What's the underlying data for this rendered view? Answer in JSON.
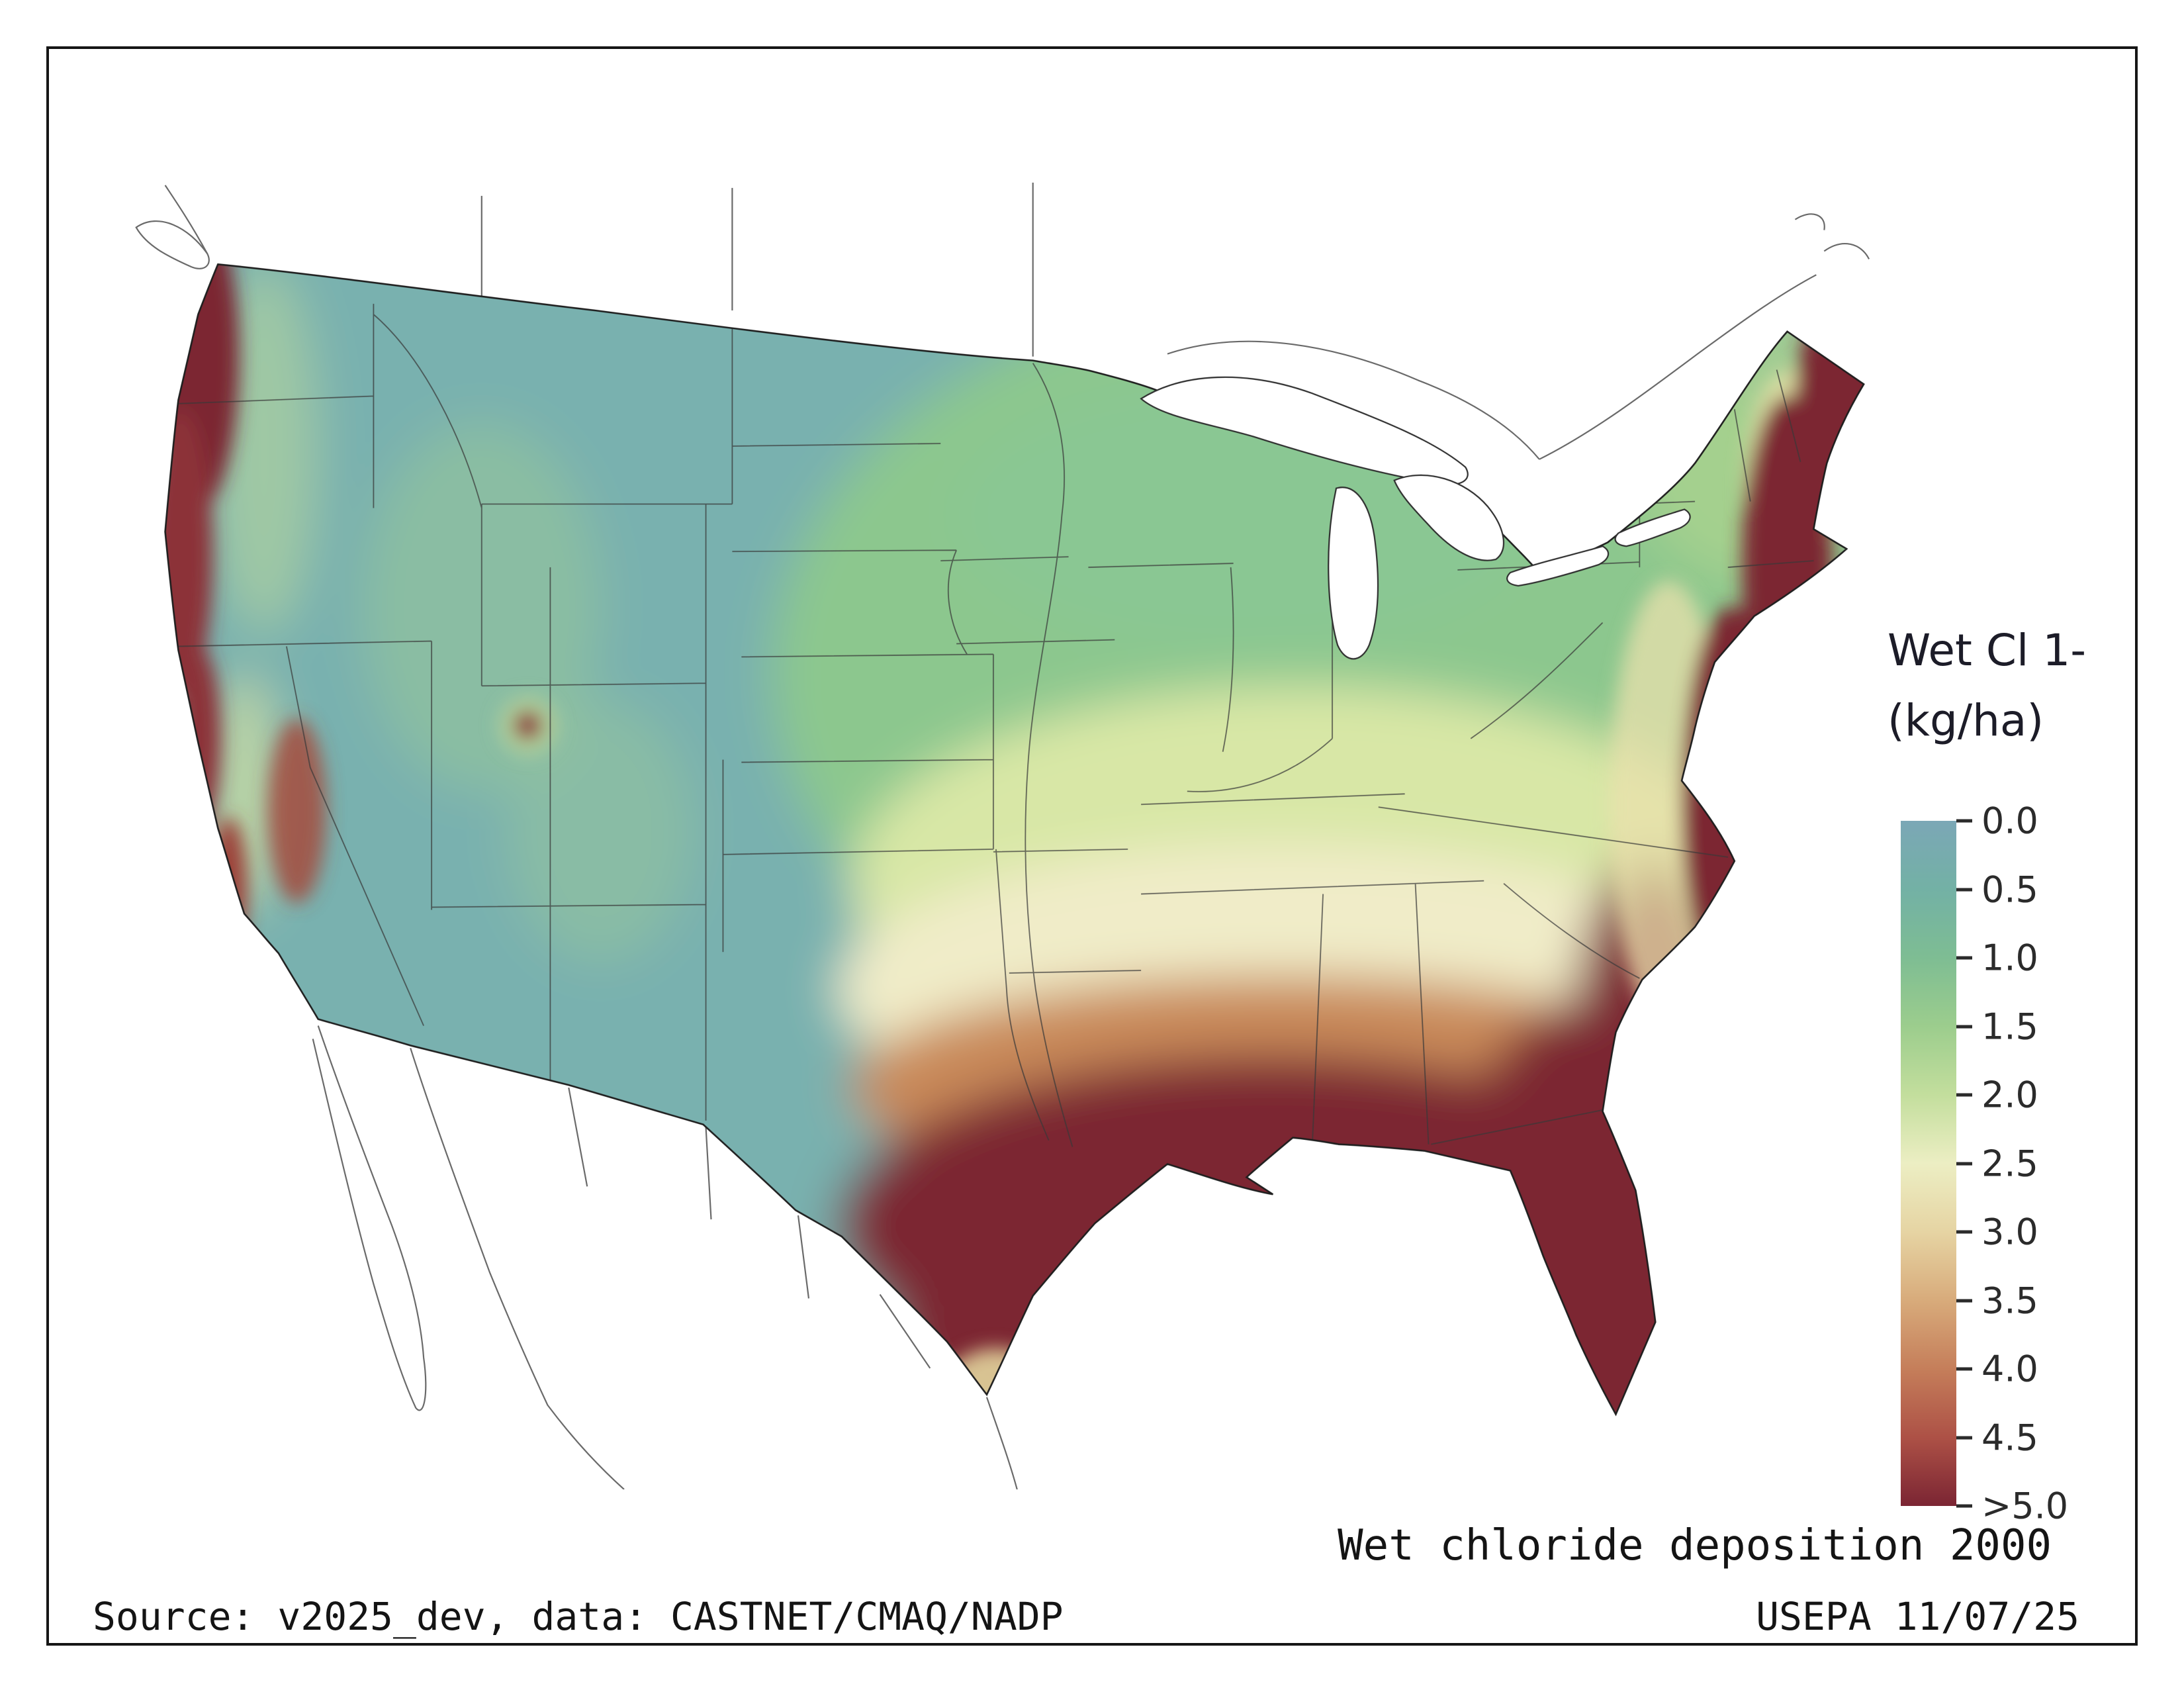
{
  "page": {
    "background": "#ffffff",
    "frame_color": "#161616"
  },
  "legend": {
    "title_line1": "Wet Cl 1-",
    "title_line2": "(kg/ha)",
    "ticks": [
      "0.0",
      "0.5",
      "1.0",
      "1.5",
      "2.0",
      "2.5",
      "3.0",
      "3.5",
      "4.0",
      "4.5",
      ">5.0"
    ],
    "gradient_colors": [
      "#7ba7b6",
      "#73b1a5",
      "#7ebd93",
      "#9ccd8d",
      "#c3de9d",
      "#eceec3",
      "#e6d4a3",
      "#d8ab7b",
      "#c57e5a",
      "#ad5146",
      "#7b2533"
    ]
  },
  "captions": {
    "map_caption": "Wet chloride deposition 2000",
    "source": "Source: v2025_dev, data: CASTNET/CMAQ/NADP",
    "credit": "USEPA 11/07/25"
  },
  "map_palette": {
    "low_teal": "#79b1af",
    "mid_green": "#8cc78e",
    "pale_yellow": "#f0ecc8",
    "orange": "#c98a5a",
    "high_maroon": "#7b2533"
  },
  "chart_data": {
    "type": "heatmap",
    "title": "Wet chloride deposition 2000",
    "legend_title": "Wet Cl 1- (kg/ha)",
    "units": "kg/ha",
    "scale_ticks": [
      "0.0",
      "0.5",
      "1.0",
      "1.5",
      "2.0",
      "2.5",
      "3.0",
      "3.5",
      "4.0",
      "4.5",
      ">5.0"
    ],
    "scale_range": [
      0,
      5
    ]
  }
}
